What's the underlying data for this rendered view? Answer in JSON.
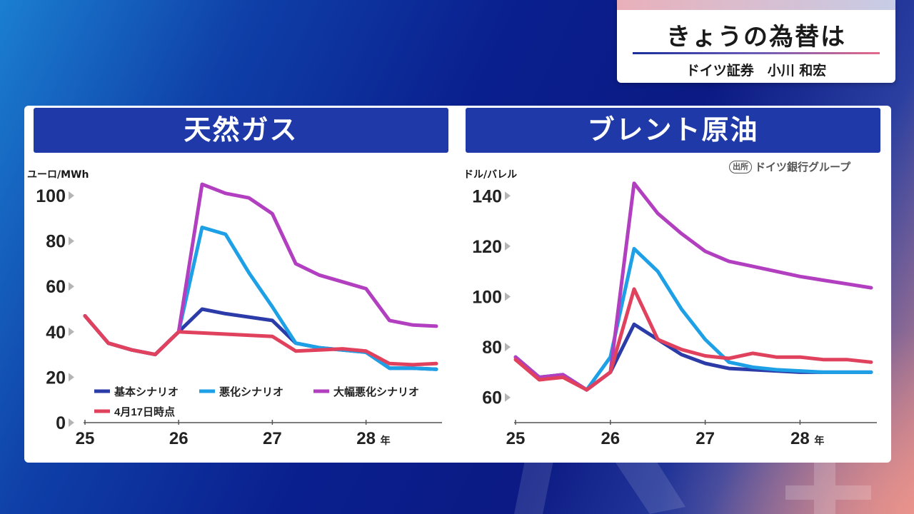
{
  "title_card": {
    "title": "きょうの為替は",
    "speaker": "ドイツ証券　小川 和宏"
  },
  "colors": {
    "header_bg": "#1f3aa8",
    "base": "#2b3ba8",
    "worse": "#1ea0e6",
    "much_worse": "#b13fbf",
    "apr17": "#e0425e"
  },
  "chart_data": [
    {
      "type": "line",
      "title": "天然ガス",
      "ylabel": "ユーロ/MWh",
      "ylim": [
        0,
        100
      ],
      "yticks": [
        "0",
        "20",
        "40",
        "60",
        "80",
        "100"
      ],
      "xlim": [
        2025,
        2028.75
      ],
      "xticks": [
        "25",
        "26",
        "27",
        "28"
      ],
      "x_suffix": "年",
      "series": [
        {
          "name": "基本シナリオ",
          "key": "base",
          "color": "#2b3ba8",
          "x": [
            2025,
            2025.25,
            2025.5,
            2025.75,
            2026,
            2026.25,
            2026.5,
            2026.75,
            2027,
            2027.25,
            2027.5,
            2027.75,
            2028,
            2028.25,
            2028.5,
            2028.75
          ],
          "y": [
            47,
            35,
            32,
            30,
            40,
            50,
            48,
            46.5,
            45,
            35,
            33,
            32,
            31,
            24,
            24,
            23.5
          ]
        },
        {
          "name": "悪化シナリオ",
          "key": "worse",
          "color": "#1ea0e6",
          "x": [
            2025,
            2025.25,
            2025.5,
            2025.75,
            2026,
            2026.25,
            2026.5,
            2026.75,
            2027,
            2027.25,
            2027.5,
            2027.75,
            2028,
            2028.25,
            2028.5,
            2028.75
          ],
          "y": [
            47,
            35,
            32,
            30,
            40,
            86,
            83,
            66,
            51,
            35,
            33,
            32,
            31,
            24,
            24,
            23.5
          ]
        },
        {
          "name": "大幅悪化シナリオ",
          "key": "much_worse",
          "color": "#b13fbf",
          "x": [
            2025,
            2025.25,
            2025.5,
            2025.75,
            2026,
            2026.25,
            2026.5,
            2026.75,
            2027,
            2027.25,
            2027.5,
            2027.75,
            2028,
            2028.25,
            2028.5,
            2028.75
          ],
          "y": [
            47,
            35,
            32,
            30,
            40,
            105,
            101,
            99,
            92,
            70,
            65,
            62,
            59,
            45,
            43,
            42.5
          ]
        },
        {
          "name": "4月17日時点",
          "key": "apr17",
          "color": "#e0425e",
          "x": [
            2025,
            2025.25,
            2025.5,
            2025.75,
            2026,
            2026.25,
            2026.5,
            2026.75,
            2027,
            2027.25,
            2027.5,
            2027.75,
            2028,
            2028.25,
            2028.5,
            2028.75
          ],
          "y": [
            47,
            35,
            32,
            30,
            40,
            39.5,
            39,
            38.5,
            38,
            31.5,
            32,
            32.5,
            31.5,
            26,
            25.5,
            26
          ]
        }
      ]
    },
    {
      "type": "line",
      "title": "ブレント原油",
      "ylabel": "ドル/バレル",
      "source_tag": "出所",
      "source": "ドイツ銀行グループ",
      "ylim": [
        50,
        150
      ],
      "yticks": [
        "60",
        "80",
        "100",
        "120",
        "140"
      ],
      "xlim": [
        2025,
        2028.75
      ],
      "xticks": [
        "25",
        "26",
        "27",
        "28"
      ],
      "x_suffix": "年",
      "series": [
        {
          "name": "基本シナリオ",
          "key": "base",
          "color": "#2b3ba8",
          "x": [
            2025,
            2025.25,
            2025.5,
            2025.75,
            2026,
            2026.25,
            2026.5,
            2026.75,
            2027,
            2027.25,
            2027.5,
            2027.75,
            2028,
            2028.25,
            2028.5,
            2028.75
          ],
          "y": [
            76,
            68,
            69,
            63,
            70,
            89,
            83,
            77,
            73.5,
            71.5,
            71,
            70.5,
            70,
            70,
            70,
            70
          ]
        },
        {
          "name": "悪化シナリオ",
          "key": "worse",
          "color": "#1ea0e6",
          "x": [
            2025,
            2025.25,
            2025.5,
            2025.75,
            2026,
            2026.25,
            2026.5,
            2026.75,
            2027,
            2027.25,
            2027.5,
            2027.75,
            2028,
            2028.25,
            2028.5,
            2028.75
          ],
          "y": [
            76,
            68,
            69,
            63,
            76,
            119,
            110,
            95,
            83,
            74,
            72,
            71,
            70.5,
            70,
            70,
            70
          ]
        },
        {
          "name": "大幅悪化シナリオ",
          "key": "much_worse",
          "color": "#b13fbf",
          "x": [
            2025,
            2025.25,
            2025.5,
            2025.75,
            2026,
            2026.25,
            2026.5,
            2026.75,
            2027,
            2027.25,
            2027.5,
            2027.75,
            2028,
            2028.25,
            2028.5,
            2028.75
          ],
          "y": [
            76,
            68,
            69,
            63,
            70,
            145,
            133,
            125,
            118,
            114,
            112,
            110,
            108,
            106.5,
            105,
            103.5
          ]
        },
        {
          "name": "4月17日時点",
          "key": "apr17",
          "color": "#e0425e",
          "x": [
            2025,
            2025.25,
            2025.5,
            2025.75,
            2026,
            2026.25,
            2026.5,
            2026.75,
            2027,
            2027.25,
            2027.5,
            2027.75,
            2028,
            2028.25,
            2028.5,
            2028.75
          ],
          "y": [
            75,
            67,
            68,
            63,
            70,
            103,
            83,
            79,
            76.5,
            75.5,
            77.5,
            76,
            76,
            75,
            75,
            74
          ]
        }
      ]
    }
  ]
}
